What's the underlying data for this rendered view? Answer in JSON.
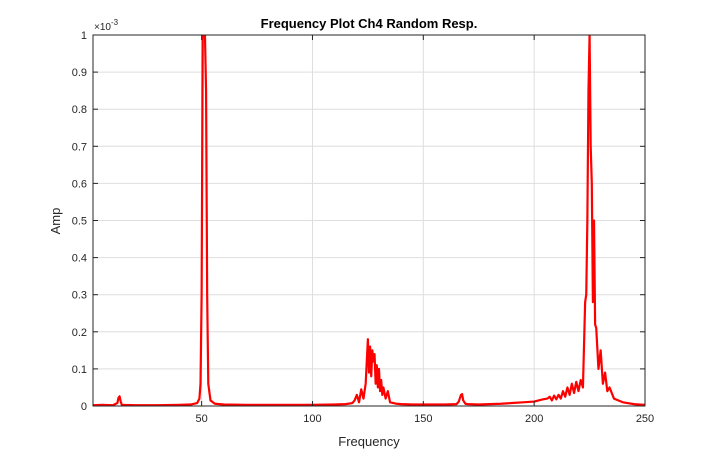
{
  "chart_data": {
    "type": "line",
    "title": "Frequency Plot Ch4 Random Resp.",
    "xlabel": "Frequency",
    "ylabel": "Amp",
    "y_exponent_label": "×10",
    "y_exponent_power": "-3",
    "xlim": [
      1,
      250
    ],
    "ylim": [
      0,
      1
    ],
    "y_scale_note": "values ×10^-3",
    "grid": true,
    "x_ticks": [
      {
        "value": 50,
        "label": "50"
      },
      {
        "value": 100,
        "label": "100"
      },
      {
        "value": 150,
        "label": "150"
      },
      {
        "value": 200,
        "label": "200"
      },
      {
        "value": 250,
        "label": "250"
      }
    ],
    "y_ticks": [
      {
        "value": 0,
        "label": "0"
      },
      {
        "value": 0.1,
        "label": "0.1"
      },
      {
        "value": 0.2,
        "label": "0.2"
      },
      {
        "value": 0.3,
        "label": "0.3"
      },
      {
        "value": 0.4,
        "label": "0.4"
      },
      {
        "value": 0.5,
        "label": "0.5"
      },
      {
        "value": 0.6,
        "label": "0.6"
      },
      {
        "value": 0.7,
        "label": "0.7"
      },
      {
        "value": 0.8,
        "label": "0.8"
      },
      {
        "value": 0.9,
        "label": "0.9"
      },
      {
        "value": 1,
        "label": "1"
      }
    ],
    "series": [
      {
        "color": "#ff0000",
        "x": [
          1,
          5,
          10,
          12,
          12.5,
          13,
          13.5,
          14,
          20,
          30,
          40,
          45,
          48,
          49,
          49.5,
          50,
          50.5,
          51,
          51.5,
          52,
          52.5,
          53,
          54,
          56,
          60,
          70,
          80,
          90,
          100,
          110,
          115,
          118,
          119,
          120,
          121,
          122,
          123,
          124,
          124.5,
          125,
          125.5,
          126,
          126.5,
          127,
          127.5,
          128,
          128.5,
          129,
          129.5,
          130,
          130.5,
          131,
          131.5,
          132,
          133,
          134,
          135,
          138,
          140,
          145,
          150,
          155,
          160,
          165,
          166,
          167,
          167.5,
          168,
          169,
          170,
          175,
          180,
          185,
          190,
          195,
          200,
          202,
          204,
          206,
          207,
          208,
          209,
          210,
          211,
          212,
          213,
          214,
          215,
          216,
          217,
          218,
          219,
          220,
          221,
          222,
          223,
          223.5,
          224,
          224.5,
          225,
          225.5,
          226,
          226.5,
          227,
          227.5,
          228,
          229,
          230,
          231,
          232,
          233,
          234,
          236,
          240,
          245,
          250
        ],
        "y": [
          0.002,
          0.003,
          0.002,
          0.008,
          0.022,
          0.026,
          0.012,
          0.003,
          0.002,
          0.002,
          0.003,
          0.004,
          0.008,
          0.02,
          0.06,
          0.3,
          1.0,
          1.0,
          1.0,
          0.85,
          0.3,
          0.06,
          0.015,
          0.006,
          0.004,
          0.003,
          0.003,
          0.003,
          0.003,
          0.004,
          0.005,
          0.008,
          0.015,
          0.03,
          0.01,
          0.045,
          0.02,
          0.06,
          0.12,
          0.18,
          0.09,
          0.16,
          0.08,
          0.15,
          0.12,
          0.14,
          0.06,
          0.11,
          0.05,
          0.1,
          0.04,
          0.07,
          0.03,
          0.05,
          0.02,
          0.04,
          0.01,
          0.006,
          0.005,
          0.004,
          0.004,
          0.004,
          0.004,
          0.005,
          0.012,
          0.03,
          0.032,
          0.015,
          0.006,
          0.005,
          0.004,
          0.005,
          0.006,
          0.008,
          0.01,
          0.012,
          0.015,
          0.018,
          0.02,
          0.025,
          0.015,
          0.028,
          0.018,
          0.03,
          0.02,
          0.04,
          0.025,
          0.05,
          0.03,
          0.06,
          0.035,
          0.065,
          0.04,
          0.07,
          0.05,
          0.28,
          0.3,
          0.5,
          0.85,
          1.0,
          0.7,
          0.6,
          0.28,
          0.5,
          0.22,
          0.21,
          0.1,
          0.15,
          0.06,
          0.09,
          0.04,
          0.05,
          0.02,
          0.01,
          0.005,
          0.003
        ]
      }
    ]
  }
}
